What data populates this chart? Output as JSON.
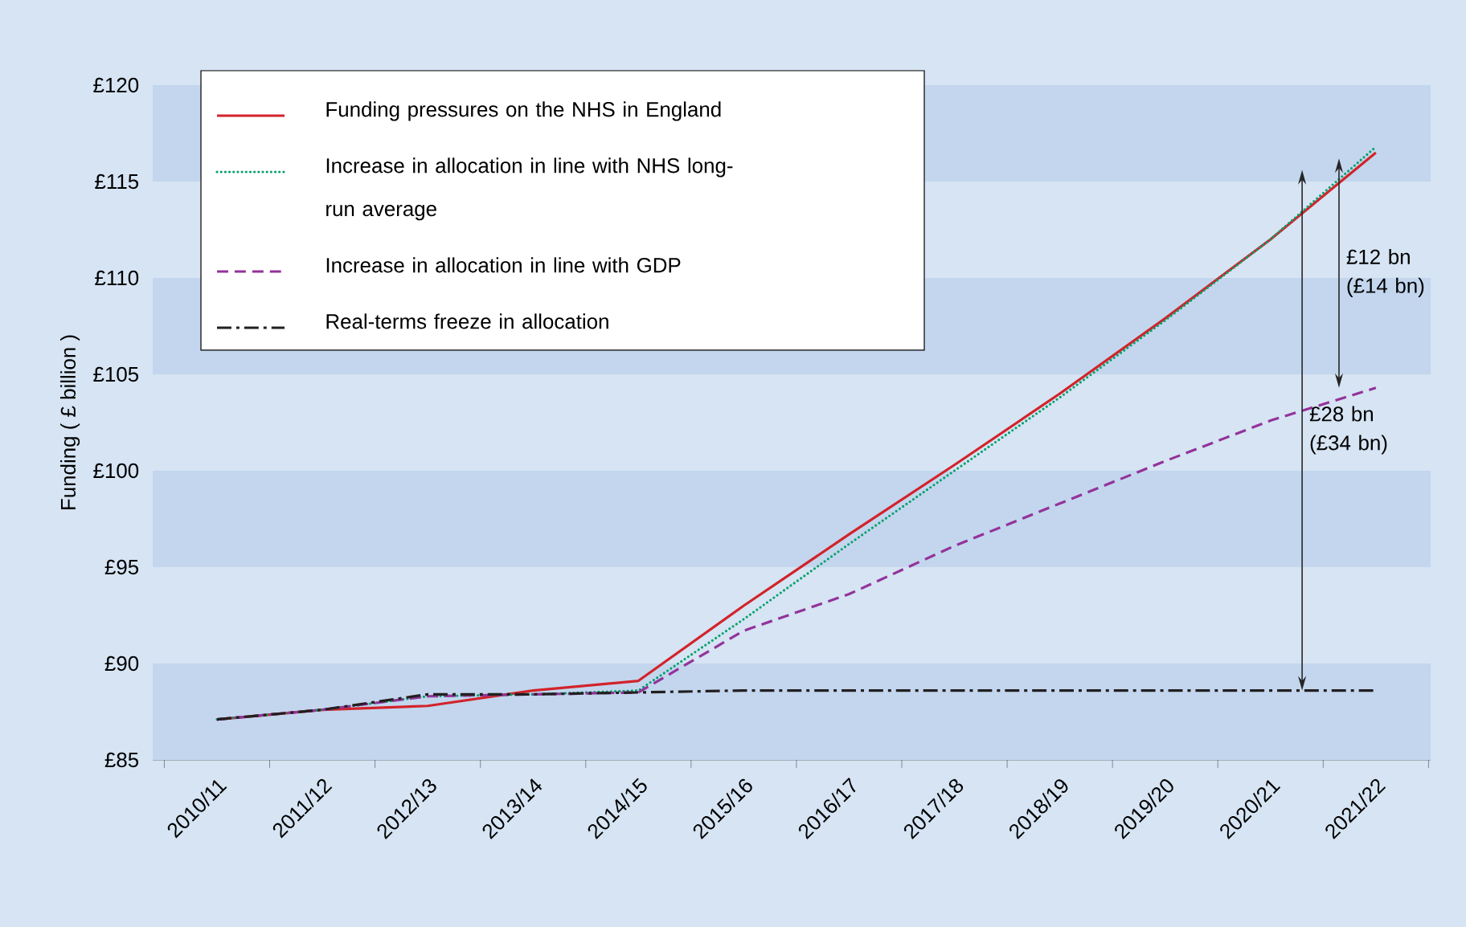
{
  "chart_data": {
    "type": "line",
    "ylabel": "Funding ( £ billion )",
    "categories": [
      "2010/11",
      "2011/12",
      "2012/13",
      "2013/14",
      "2014/15",
      "2015/16",
      "2016/17",
      "2017/18",
      "2018/19",
      "2019/20",
      "2020/21",
      "2021/22"
    ],
    "ylim": [
      85,
      120
    ],
    "yticks": [
      {
        "value": 85,
        "label": "£85"
      },
      {
        "value": 90,
        "label": "£90"
      },
      {
        "value": 95,
        "label": "£95"
      },
      {
        "value": 100,
        "label": "£100"
      },
      {
        "value": 105,
        "label": "£105"
      },
      {
        "value": 110,
        "label": "£110"
      },
      {
        "value": 115,
        "label": "£115"
      },
      {
        "value": 120,
        "label": "£120"
      }
    ],
    "bands": [
      {
        "axis": "y",
        "from": 85,
        "to": 90,
        "color": "#c3d6ee"
      },
      {
        "axis": "y",
        "from": 95,
        "to": 100,
        "color": "#c3d6ee"
      },
      {
        "axis": "y",
        "from": 105,
        "to": 110,
        "color": "#c3d6ee"
      },
      {
        "axis": "y",
        "from": 115,
        "to": 120,
        "color": "#c3d6ee"
      }
    ],
    "legend": "top left",
    "series": [
      {
        "name": "Funding pressures on the NHS in England",
        "color": "#d2232a",
        "line_style": "solid",
        "values": [
          87.1,
          87.6,
          87.8,
          88.6,
          89.1,
          93.0,
          96.7,
          100.3,
          104.0,
          107.9,
          112.0,
          116.5
        ]
      },
      {
        "name": "Increase in allocation in line with NHS long-run average",
        "color": "#00a06a",
        "line_style": "dotted",
        "values": [
          87.1,
          87.6,
          88.3,
          88.4,
          88.6,
          92.3,
          96.2,
          100.0,
          103.8,
          107.8,
          112.0,
          116.8
        ]
      },
      {
        "name": "Increase in allocation in line with GDP",
        "color": "#93339a",
        "line_style": "dashed",
        "values": [
          87.1,
          87.6,
          88.3,
          88.4,
          88.5,
          91.7,
          93.6,
          96.1,
          98.3,
          100.5,
          102.6,
          104.3
        ]
      },
      {
        "name": "Real-terms freeze in allocation",
        "color": "#231f20",
        "line_style": "dashdot",
        "values": [
          87.1,
          87.6,
          88.4,
          88.4,
          88.5,
          88.6,
          88.6,
          88.6,
          88.6,
          88.6,
          88.6,
          88.6
        ]
      }
    ],
    "annotations": [
      "£12 bn (£14 bn)",
      "£28 bn (£34 bn)"
    ]
  }
}
